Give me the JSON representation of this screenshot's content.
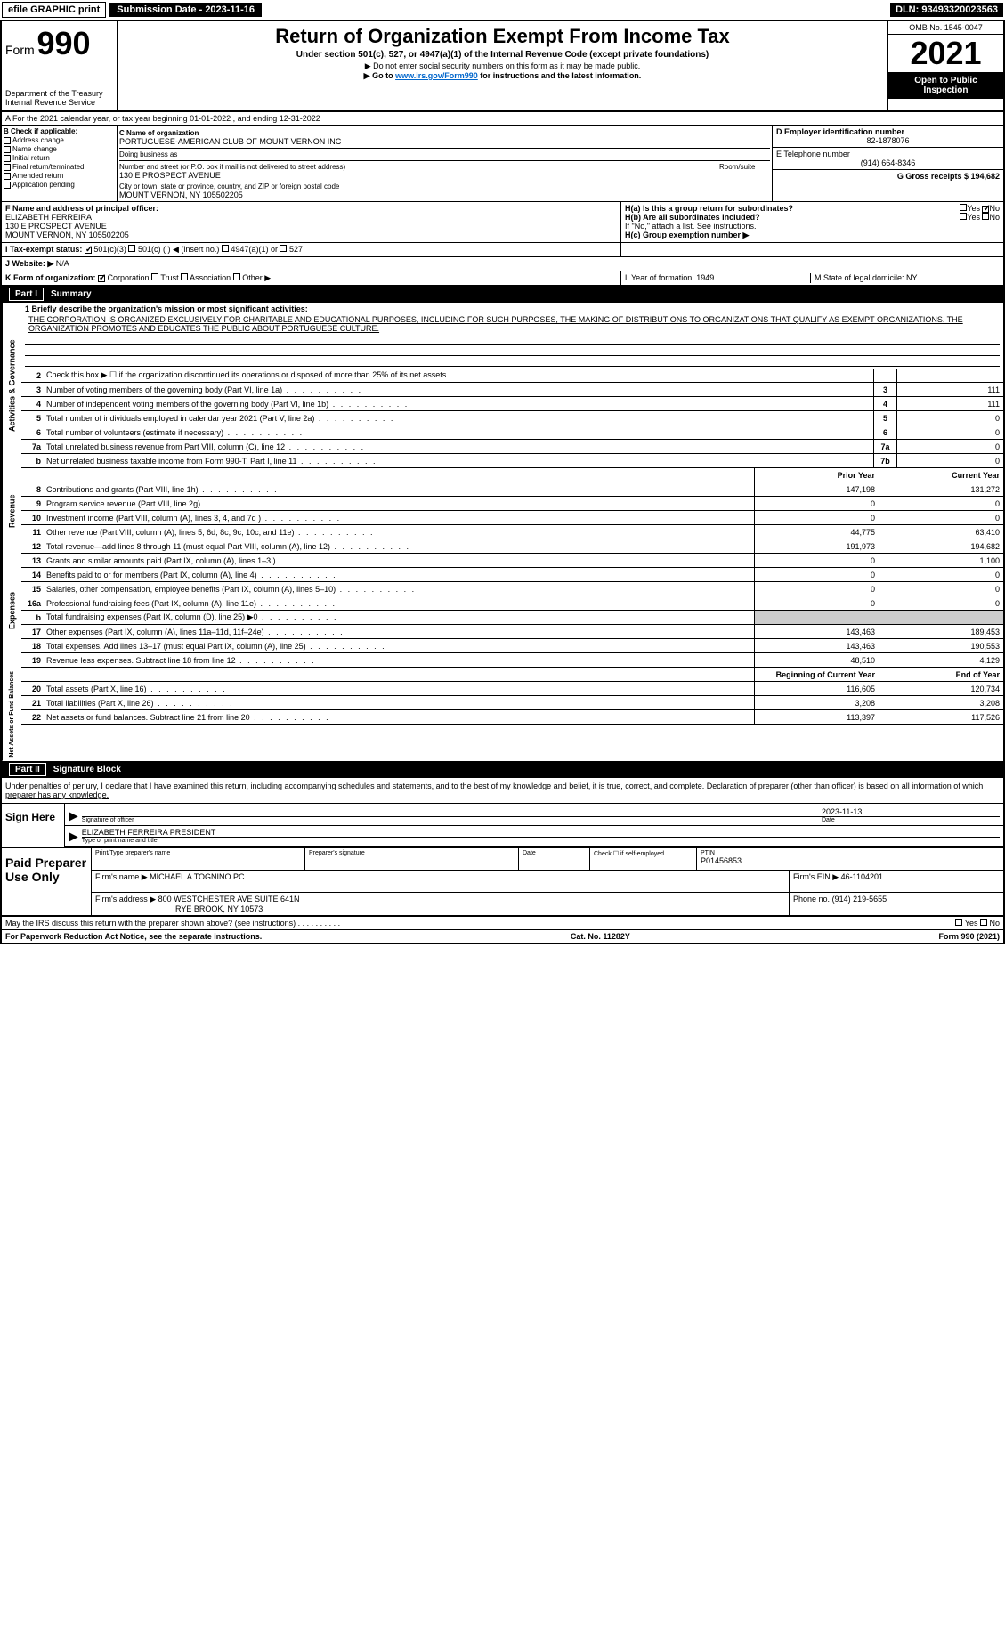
{
  "header": {
    "efile": "efile GRAPHIC print",
    "submission": "Submission Date - 2023-11-16",
    "dln": "DLN: 93493320023563"
  },
  "form": {
    "form_label": "Form",
    "form_number": "990",
    "title": "Return of Organization Exempt From Income Tax",
    "subtitle": "Under section 501(c), 527, or 4947(a)(1) of the Internal Revenue Code (except private foundations)",
    "note1": "▶ Do not enter social security numbers on this form as it may be made public.",
    "note2_prefix": "▶ Go to ",
    "note2_link": "www.irs.gov/Form990",
    "note2_suffix": " for instructions and the latest information.",
    "dept": "Department of the Treasury",
    "irs": "Internal Revenue Service",
    "omb": "OMB No. 1545-0047",
    "year": "2021",
    "open": "Open to Public Inspection"
  },
  "rowA": "A For the 2021 calendar year, or tax year beginning 01-01-2022    , and ending 12-31-2022",
  "checkB": {
    "label": "B Check if applicable:",
    "items": [
      "Address change",
      "Name change",
      "Initial return",
      "Final return/terminated",
      "Amended return",
      "Application pending"
    ]
  },
  "orgC": {
    "name_label": "C Name of organization",
    "name": "PORTUGUESE-AMERICAN CLUB OF MOUNT VERNON INC",
    "dba_label": "Doing business as",
    "street_label": "Number and street (or P.O. box if mail is not delivered to street address)",
    "room_label": "Room/suite",
    "street": "130 E PROSPECT AVENUE",
    "city_label": "City or town, state or province, country, and ZIP or foreign postal code",
    "city": "MOUNT VERNON, NY  105502205"
  },
  "colDE": {
    "d_label": "D Employer identification number",
    "ein": "82-1878076",
    "e_label": "E Telephone number",
    "phone": "(914) 664-8346",
    "g_label": "G Gross receipts $ 194,682"
  },
  "rowF": {
    "f_label": "F Name and address of principal officer:",
    "officer": "ELIZABETH FERREIRA",
    "addr1": "130 E PROSPECT AVENUE",
    "addr2": "MOUNT VERNON, NY  105502205"
  },
  "rowH": {
    "ha": "H(a)  Is this a group return for subordinates?",
    "hb": "H(b)  Are all subordinates included?",
    "hb_note": "If \"No,\" attach a list. See instructions.",
    "hc": "H(c)  Group exemption number ▶",
    "yes": "Yes",
    "no": "No"
  },
  "rowI": {
    "label": "I    Tax-exempt status:",
    "opt1": "501(c)(3)",
    "opt2": "501(c) (  ) ◀ (insert no.)",
    "opt3": "4947(a)(1) or",
    "opt4": "527"
  },
  "rowJ": {
    "label": "J    Website: ▶",
    "value": "N/A"
  },
  "rowK": {
    "label": "K Form of organization:",
    "opts": [
      "Corporation",
      "Trust",
      "Association",
      "Other ▶"
    ]
  },
  "rowL": {
    "l_label": "L Year of formation: 1949",
    "m_label": "M State of legal domicile: NY"
  },
  "part1": {
    "label": "Part I",
    "title": "Summary"
  },
  "mission": {
    "q1": "1  Briefly describe the organization's mission or most significant activities:",
    "text": "THE CORPORATION IS ORGANIZED EXCLUSIVELY FOR CHARITABLE AND EDUCATIONAL PURPOSES, INCLUDING FOR SUCH PURPOSES, THE MAKING OF DISTRIBUTIONS TO ORGANIZATIONS THAT QUALIFY AS EXEMPT ORGANIZATIONS. THE ORGANIZATION PROMOTES AND EDUCATES THE PUBLIC ABOUT PORTUGUESE CULTURE."
  },
  "governance": {
    "side": "Activities & Governance",
    "rows": [
      {
        "n": "2",
        "d": "Check this box ▶ ☐  if the organization discontinued its operations or disposed of more than 25% of its net assets.",
        "box": "",
        "val": ""
      },
      {
        "n": "3",
        "d": "Number of voting members of the governing body (Part VI, line 1a)",
        "box": "3",
        "val": "111"
      },
      {
        "n": "4",
        "d": "Number of independent voting members of the governing body (Part VI, line 1b)",
        "box": "4",
        "val": "111"
      },
      {
        "n": "5",
        "d": "Total number of individuals employed in calendar year 2021 (Part V, line 2a)",
        "box": "5",
        "val": "0"
      },
      {
        "n": "6",
        "d": "Total number of volunteers (estimate if necessary)",
        "box": "6",
        "val": "0"
      },
      {
        "n": "7a",
        "d": "Total unrelated business revenue from Part VIII, column (C), line 12",
        "box": "7a",
        "val": "0"
      },
      {
        "n": "b",
        "d": "Net unrelated business taxable income from Form 990-T, Part I, line 11",
        "box": "7b",
        "val": "0"
      }
    ]
  },
  "revenue": {
    "side": "Revenue",
    "header_prior": "Prior Year",
    "header_current": "Current Year",
    "rows": [
      {
        "n": "8",
        "d": "Contributions and grants (Part VIII, line 1h)",
        "prior": "147,198",
        "current": "131,272"
      },
      {
        "n": "9",
        "d": "Program service revenue (Part VIII, line 2g)",
        "prior": "0",
        "current": "0"
      },
      {
        "n": "10",
        "d": "Investment income (Part VIII, column (A), lines 3, 4, and 7d )",
        "prior": "0",
        "current": "0"
      },
      {
        "n": "11",
        "d": "Other revenue (Part VIII, column (A), lines 5, 6d, 8c, 9c, 10c, and 11e)",
        "prior": "44,775",
        "current": "63,410"
      },
      {
        "n": "12",
        "d": "Total revenue—add lines 8 through 11 (must equal Part VIII, column (A), line 12)",
        "prior": "191,973",
        "current": "194,682"
      }
    ]
  },
  "expenses": {
    "side": "Expenses",
    "rows": [
      {
        "n": "13",
        "d": "Grants and similar amounts paid (Part IX, column (A), lines 1–3 )",
        "prior": "0",
        "current": "1,100"
      },
      {
        "n": "14",
        "d": "Benefits paid to or for members (Part IX, column (A), line 4)",
        "prior": "0",
        "current": "0"
      },
      {
        "n": "15",
        "d": "Salaries, other compensation, employee benefits (Part IX, column (A), lines 5–10)",
        "prior": "0",
        "current": "0"
      },
      {
        "n": "16a",
        "d": "Professional fundraising fees (Part IX, column (A), line 11e)",
        "prior": "0",
        "current": "0"
      },
      {
        "n": "b",
        "d": "Total fundraising expenses (Part IX, column (D), line 25) ▶0",
        "prior": "",
        "current": "",
        "shaded": true
      },
      {
        "n": "17",
        "d": "Other expenses (Part IX, column (A), lines 11a–11d, 11f–24e)",
        "prior": "143,463",
        "current": "189,453"
      },
      {
        "n": "18",
        "d": "Total expenses. Add lines 13–17 (must equal Part IX, column (A), line 25)",
        "prior": "143,463",
        "current": "190,553"
      },
      {
        "n": "19",
        "d": "Revenue less expenses. Subtract line 18 from line 12",
        "prior": "48,510",
        "current": "4,129"
      }
    ]
  },
  "netassets": {
    "side": "Net Assets or Fund Balances",
    "header_prior": "Beginning of Current Year",
    "header_current": "End of Year",
    "rows": [
      {
        "n": "20",
        "d": "Total assets (Part X, line 16)",
        "prior": "116,605",
        "current": "120,734"
      },
      {
        "n": "21",
        "d": "Total liabilities (Part X, line 26)",
        "prior": "3,208",
        "current": "3,208"
      },
      {
        "n": "22",
        "d": "Net assets or fund balances. Subtract line 21 from line 20",
        "prior": "113,397",
        "current": "117,526"
      }
    ]
  },
  "part2": {
    "label": "Part II",
    "title": "Signature Block"
  },
  "signature": {
    "intro": "Under penalties of perjury, I declare that I have examined this return, including accompanying schedules and statements, and to the best of my knowledge and belief, it is true, correct, and complete. Declaration of preparer (other than officer) is based on all information of which preparer has any knowledge.",
    "sign_here": "Sign Here",
    "sig_officer": "Signature of officer",
    "date_label": "Date",
    "date": "2023-11-13",
    "name": "ELIZABETH FERREIRA  PRESIDENT",
    "type_label": "Type or print name and title"
  },
  "preparer": {
    "label": "Paid Preparer Use Only",
    "name_label": "Print/Type preparer's name",
    "sig_label": "Preparer's signature",
    "date_label": "Date",
    "check_label": "Check ☐ if self-employed",
    "ptin_label": "PTIN",
    "ptin": "P01456853",
    "firm_name_label": "Firm's name    ▶",
    "firm_name": "MICHAEL A TOGNINO PC",
    "firm_ein_label": "Firm's EIN ▶",
    "firm_ein": "46-1104201",
    "firm_addr_label": "Firm's address ▶",
    "firm_addr1": "800 WESTCHESTER AVE SUITE 641N",
    "firm_addr2": "RYE BROOK, NY  10573",
    "phone_label": "Phone no.",
    "phone": "(914) 219-5655"
  },
  "footer": {
    "discuss": "May the IRS discuss this return with the preparer shown above? (see instructions)",
    "yes": "Yes",
    "no": "No",
    "paperwork": "For Paperwork Reduction Act Notice, see the separate instructions.",
    "cat": "Cat. No. 11282Y",
    "form": "Form 990 (2021)"
  }
}
